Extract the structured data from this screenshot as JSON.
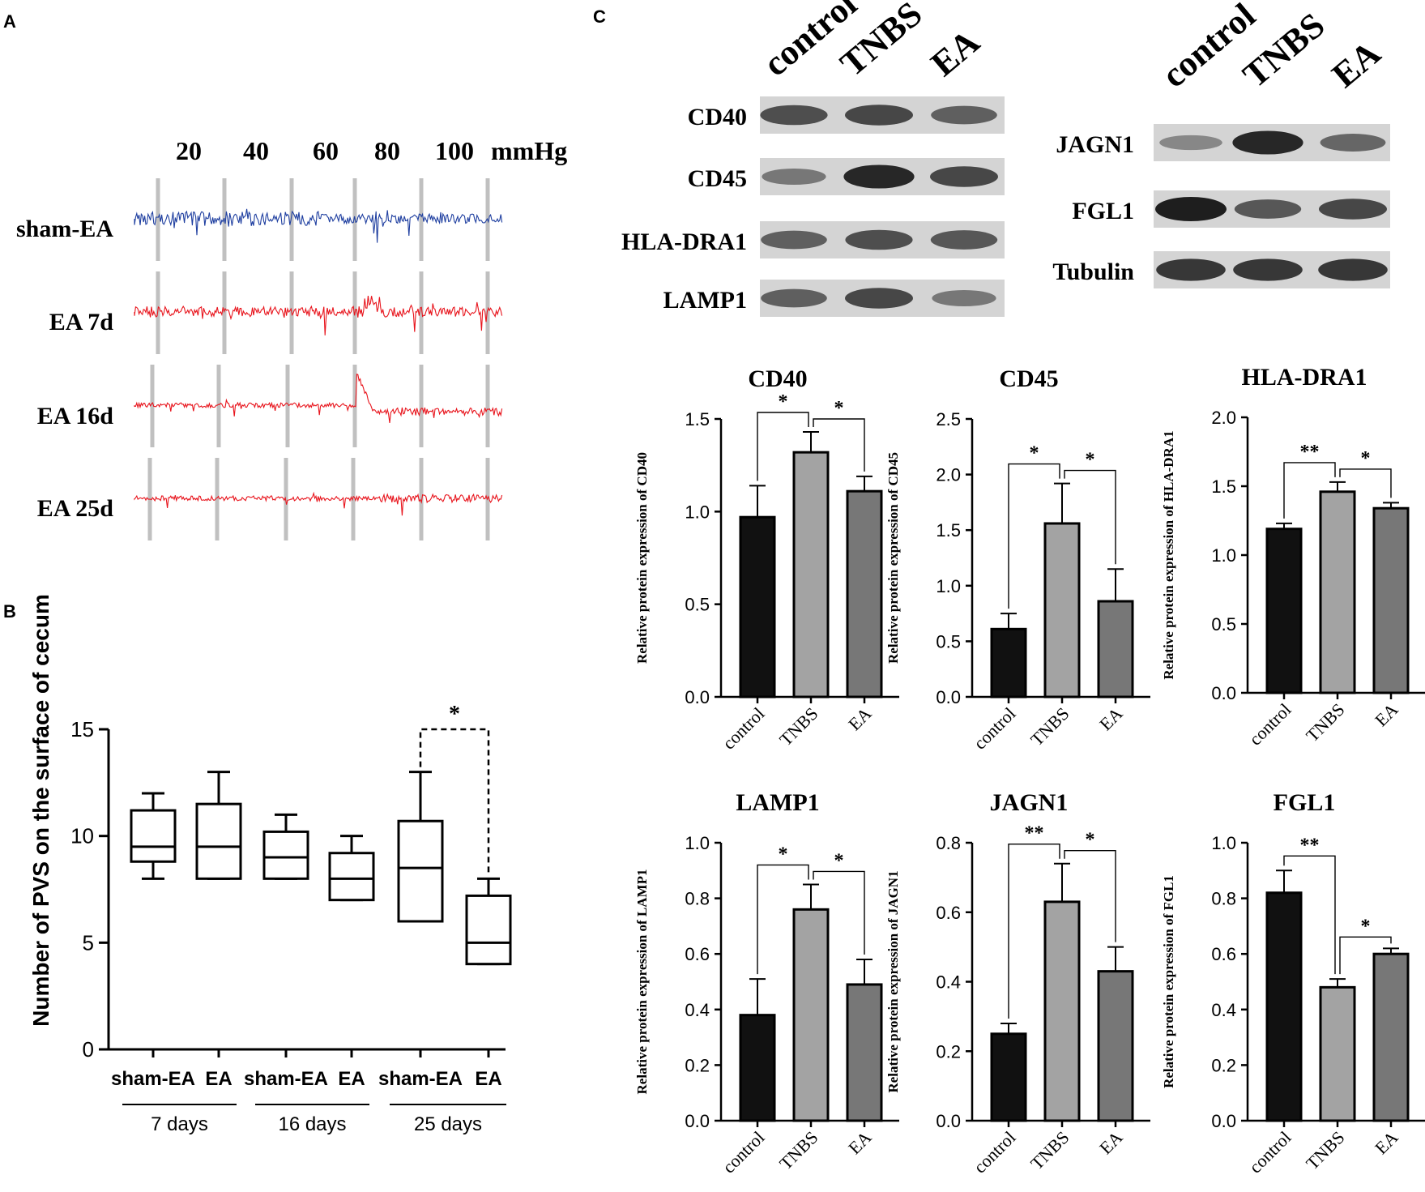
{
  "panel_letters": [
    "A",
    "B",
    "C"
  ],
  "panel_a": {
    "pressure_labels": [
      "20",
      "40",
      "60",
      "80",
      "100"
    ],
    "unit": "mmHg",
    "traces": [
      {
        "label": "sham-EA",
        "color": "#1f3fa0"
      },
      {
        "label": "EA 7d",
        "color": "#e8141c"
      },
      {
        "label": "EA 16d",
        "color": "#e8141c"
      },
      {
        "label": "EA 25d",
        "color": "#e8141c"
      }
    ]
  },
  "blots": {
    "left": {
      "lanes": [
        "control",
        "TNBS",
        "EA"
      ],
      "rows": [
        {
          "label": "CD40",
          "intensity": [
            0.7,
            0.75,
            0.6
          ]
        },
        {
          "label": "CD45",
          "intensity": [
            0.45,
            0.95,
            0.75
          ]
        },
        {
          "label": "HLA-DRA1",
          "intensity": [
            0.6,
            0.7,
            0.65
          ]
        },
        {
          "label": "LAMP1",
          "intensity": [
            0.6,
            0.75,
            0.45
          ]
        }
      ]
    },
    "right": {
      "lanes": [
        "control",
        "TNBS",
        "EA"
      ],
      "rows": [
        {
          "label": "JAGN1",
          "intensity": [
            0.35,
            0.95,
            0.55
          ]
        },
        {
          "label": "FGL1",
          "intensity": [
            1.0,
            0.65,
            0.75
          ]
        },
        {
          "label": "Tubulin",
          "intensity": [
            0.85,
            0.85,
            0.85
          ]
        }
      ]
    }
  },
  "chart_data": [
    {
      "id": "pvs_box",
      "type": "box",
      "ylabel": "Number of PVS on the surface of cecum",
      "ylim": [
        0,
        15
      ],
      "yticks": [
        "0",
        "5",
        "10",
        "15"
      ],
      "categories": [
        "sham-EA",
        "EA",
        "sham-EA",
        "EA",
        "sham-EA",
        "EA"
      ],
      "groups": [
        "7 days",
        "16 days",
        "25 days"
      ],
      "boxes": [
        {
          "min": 8,
          "q1": 8.8,
          "median": 9.5,
          "q3": 11.2,
          "max": 12
        },
        {
          "min": 8,
          "q1": 8,
          "median": 9.5,
          "q3": 11.5,
          "max": 13
        },
        {
          "min": 8,
          "q1": 8,
          "median": 9,
          "q3": 10.2,
          "max": 11
        },
        {
          "min": 7,
          "q1": 7,
          "median": 8,
          "q3": 9.2,
          "max": 10
        },
        {
          "min": 6,
          "q1": 6,
          "median": 8.5,
          "q3": 10.7,
          "max": 13
        },
        {
          "min": 4,
          "q1": 4,
          "median": 5,
          "q3": 7.2,
          "max": 8
        }
      ],
      "significance": {
        "from": 4,
        "to": 5,
        "label": "*"
      }
    },
    {
      "id": "cd40",
      "type": "bar",
      "title": "CD40",
      "ylabel": "Relative protein expression of CD40",
      "categories": [
        "control",
        "TNBS",
        "EA"
      ],
      "values": [
        0.97,
        1.32,
        1.11
      ],
      "errors": [
        0.17,
        0.11,
        0.08
      ],
      "ylim": [
        0,
        1.5
      ],
      "yticks": [
        "0.0",
        "0.5",
        "1.0",
        "1.5"
      ],
      "sig": [
        {
          "a": 0,
          "b": 1,
          "label": "*"
        },
        {
          "a": 1,
          "b": 2,
          "label": "*"
        }
      ]
    },
    {
      "id": "cd45",
      "type": "bar",
      "title": "CD45",
      "ylabel": "Relative protein expression of CD45",
      "categories": [
        "control",
        "TNBS",
        "EA"
      ],
      "values": [
        0.61,
        1.56,
        0.86
      ],
      "errors": [
        0.14,
        0.36,
        0.29
      ],
      "ylim": [
        0,
        2.5
      ],
      "yticks": [
        "0.0",
        "0.5",
        "1.0",
        "1.5",
        "2.0",
        "2.5"
      ],
      "sig": [
        {
          "a": 0,
          "b": 1,
          "label": "*"
        },
        {
          "a": 1,
          "b": 2,
          "label": "*"
        }
      ]
    },
    {
      "id": "hla",
      "type": "bar",
      "title": "HLA-DRA1",
      "ylabel": "Relative protein expression of HLA-DRA1",
      "categories": [
        "control",
        "TNBS",
        "EA"
      ],
      "values": [
        1.19,
        1.46,
        1.34
      ],
      "errors": [
        0.04,
        0.07,
        0.04
      ],
      "ylim": [
        0,
        2.0
      ],
      "yticks": [
        "0.0",
        "0.5",
        "1.0",
        "1.5",
        "2.0"
      ],
      "sig": [
        {
          "a": 0,
          "b": 1,
          "label": "**"
        },
        {
          "a": 1,
          "b": 2,
          "label": "*"
        }
      ]
    },
    {
      "id": "lamp1",
      "type": "bar",
      "title": "LAMP1",
      "ylabel": "Relative protein expression of LAMP1",
      "categories": [
        "control",
        "TNBS",
        "EA"
      ],
      "values": [
        0.38,
        0.76,
        0.49
      ],
      "errors": [
        0.13,
        0.09,
        0.09
      ],
      "ylim": [
        0,
        1.0
      ],
      "yticks": [
        "0.0",
        "0.2",
        "0.4",
        "0.6",
        "0.8",
        "1.0"
      ],
      "sig": [
        {
          "a": 0,
          "b": 1,
          "label": "*"
        },
        {
          "a": 1,
          "b": 2,
          "label": "*"
        }
      ]
    },
    {
      "id": "jagn1",
      "type": "bar",
      "title": "JAGN1",
      "ylabel": "Relative protein expression of JAGN1",
      "categories": [
        "control",
        "TNBS",
        "EA"
      ],
      "values": [
        0.25,
        0.63,
        0.43
      ],
      "errors": [
        0.03,
        0.11,
        0.07
      ],
      "ylim": [
        0,
        0.8
      ],
      "yticks": [
        "0.0",
        "0.2",
        "0.4",
        "0.6",
        "0.8"
      ],
      "sig": [
        {
          "a": 0,
          "b": 1,
          "label": "**"
        },
        {
          "a": 1,
          "b": 2,
          "label": "*"
        }
      ]
    },
    {
      "id": "fgl1",
      "type": "bar",
      "title": "FGL1",
      "ylabel": "Relative protein expression of FGL1",
      "categories": [
        "control",
        "TNBS",
        "EA"
      ],
      "values": [
        0.82,
        0.48,
        0.6
      ],
      "errors": [
        0.08,
        0.03,
        0.02
      ],
      "ylim": [
        0,
        1.0
      ],
      "yticks": [
        "0.0",
        "0.2",
        "0.4",
        "0.6",
        "0.8",
        "1.0"
      ],
      "sig": [
        {
          "a": 0,
          "b": 1,
          "label": "**"
        },
        {
          "a": 1,
          "b": 2,
          "label": "*"
        }
      ]
    }
  ]
}
